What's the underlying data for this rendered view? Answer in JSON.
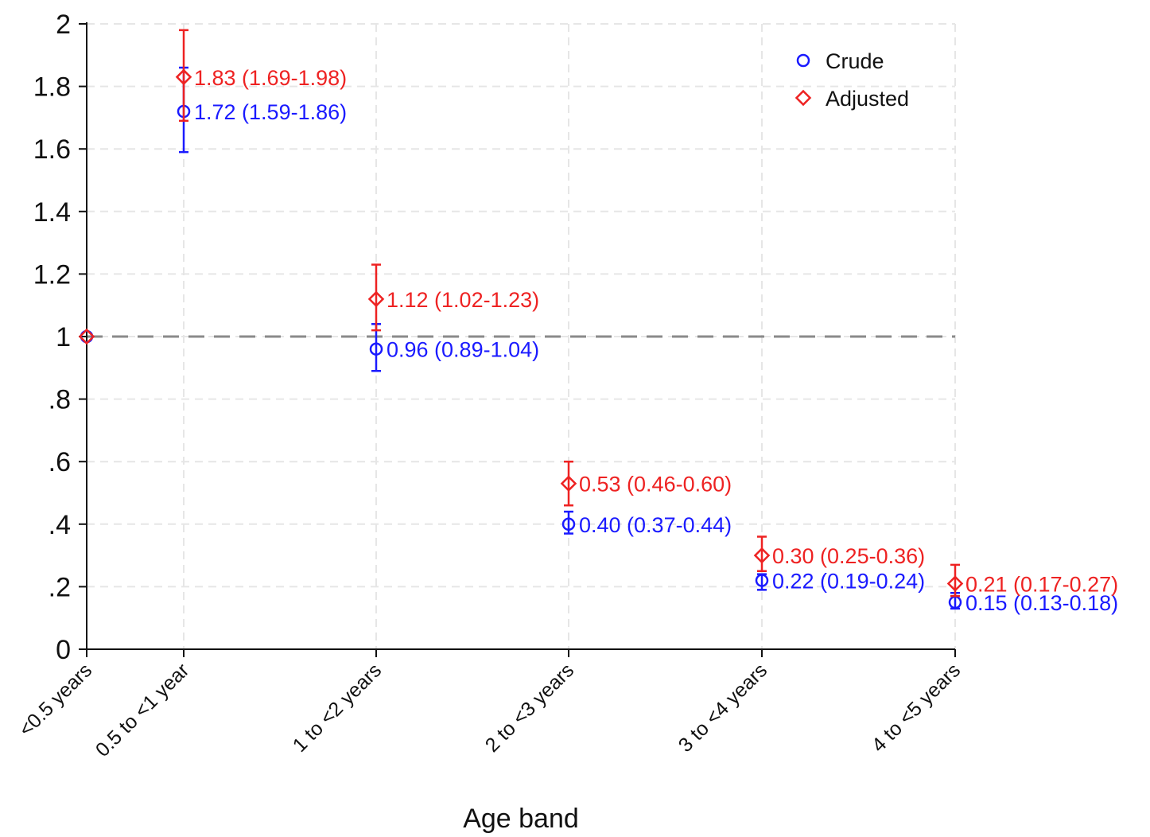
{
  "chart_data": {
    "type": "scatter",
    "xlabel": "Age band",
    "ylabel": "",
    "categories": [
      "<0.5 years",
      "0.5 to <1 year",
      "1 to <2 years",
      "2 to <3 years",
      "3 to <4 years",
      "4 to <5 years"
    ],
    "ylim": [
      0,
      2
    ],
    "yticks": [
      "0",
      ".2",
      ".4",
      ".6",
      ".8",
      "1",
      "1.2",
      "1.4",
      "1.6",
      "1.8",
      "2"
    ],
    "yticks_values": [
      0,
      0.2,
      0.4,
      0.6,
      0.8,
      1.0,
      1.2,
      1.4,
      1.6,
      1.8,
      2.0
    ],
    "reference_line": 1,
    "grid": true,
    "legend_position": "top-right",
    "series": [
      {
        "name": "Crude",
        "color": "#1a1aff",
        "marker": "circle",
        "values": [
          1.0,
          1.72,
          0.96,
          0.4,
          0.22,
          0.15
        ],
        "ci_low": [
          null,
          1.59,
          0.89,
          0.37,
          0.19,
          0.13
        ],
        "ci_high": [
          null,
          1.86,
          1.04,
          0.44,
          0.24,
          0.18
        ],
        "labels": [
          "",
          "1.72 (1.59-1.86)",
          "0.96 (0.89-1.04)",
          "0.40 (0.37-0.44)",
          "0.22 (0.19-0.24)",
          "0.15 (0.13-0.18)"
        ]
      },
      {
        "name": "Adjusted",
        "color": "#ee2222",
        "marker": "diamond",
        "values": [
          1.0,
          1.83,
          1.12,
          0.53,
          0.3,
          0.21
        ],
        "ci_low": [
          null,
          1.69,
          1.02,
          0.46,
          0.25,
          0.17
        ],
        "ci_high": [
          null,
          1.98,
          1.23,
          0.6,
          0.36,
          0.27
        ],
        "labels": [
          "",
          "1.83 (1.69-1.98)",
          "1.12 (1.02-1.23)",
          "0.53 (0.46-0.60)",
          "0.30 (0.25-0.36)",
          "0.21 (0.17-0.27)"
        ]
      }
    ]
  }
}
